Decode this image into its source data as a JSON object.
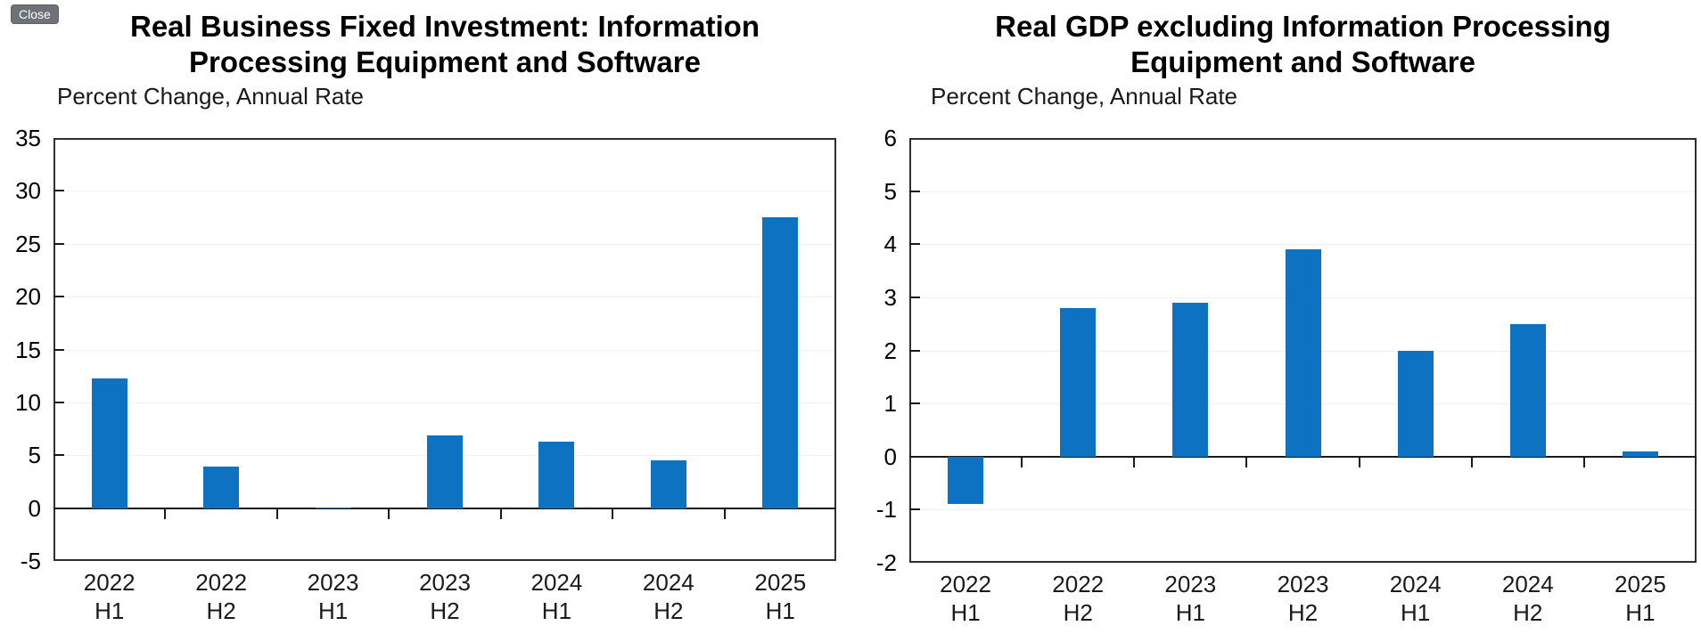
{
  "close_button": {
    "label": "Close"
  },
  "colors": {
    "bar_blue": "#0e72c2",
    "axis_border": "#2f2f2f",
    "zero_line": "#1a1a1a",
    "gridline": "#f1f1f1",
    "text": "#111111",
    "close_bg": "#6e7276",
    "close_text": "#ffffff"
  },
  "chart_data": [
    {
      "type": "bar",
      "title": "Real Business Fixed Investment: Information Processing Equipment and Software",
      "title_lines": [
        "Real Business Fixed Investment: Information",
        "Processing Equipment and Software"
      ],
      "subtitle": "Percent Change, Annual Rate",
      "categories": [
        "2022 H1",
        "2022 H2",
        "2023 H1",
        "2023 H2",
        "2024 H1",
        "2024 H2",
        "2025 H1"
      ],
      "category_lines": [
        [
          "2022",
          "H1"
        ],
        [
          "2022",
          "H2"
        ],
        [
          "2023",
          "H1"
        ],
        [
          "2023",
          "H2"
        ],
        [
          "2024",
          "H1"
        ],
        [
          "2024",
          "H2"
        ],
        [
          "2025",
          "H1"
        ]
      ],
      "values": [
        12.3,
        3.9,
        0.0,
        6.9,
        6.3,
        4.5,
        27.5
      ],
      "ylim": [
        -5,
        35
      ],
      "ytick_step": 5,
      "yticks": [
        35,
        30,
        25,
        20,
        15,
        10,
        5,
        0,
        -5
      ],
      "xlabel": "",
      "ylabel": "",
      "legend": "none",
      "grid": "faint-horizontal",
      "bar_color": "#0e72c2"
    },
    {
      "type": "bar",
      "title": "Real GDP excluding Information Processing Equipment and Software",
      "title_lines": [
        "Real GDP excluding Information Processing",
        "Equipment and Software"
      ],
      "subtitle": "Percent Change, Annual Rate",
      "categories": [
        "2022 H1",
        "2022 H2",
        "2023 H1",
        "2023 H2",
        "2024 H1",
        "2024 H2",
        "2025 H1"
      ],
      "category_lines": [
        [
          "2022",
          "H1"
        ],
        [
          "2022",
          "H2"
        ],
        [
          "2023",
          "H1"
        ],
        [
          "2023",
          "H2"
        ],
        [
          "2024",
          "H1"
        ],
        [
          "2024",
          "H2"
        ],
        [
          "2025",
          "H1"
        ]
      ],
      "values": [
        -0.9,
        2.8,
        2.9,
        3.9,
        2.0,
        2.5,
        0.1
      ],
      "ylim": [
        -2,
        6
      ],
      "ytick_step": 1,
      "yticks": [
        6,
        5,
        4,
        3,
        2,
        1,
        0,
        -1,
        -2
      ],
      "xlabel": "",
      "ylabel": "",
      "legend": "none",
      "grid": "faint-horizontal",
      "bar_color": "#0e72c2"
    }
  ]
}
